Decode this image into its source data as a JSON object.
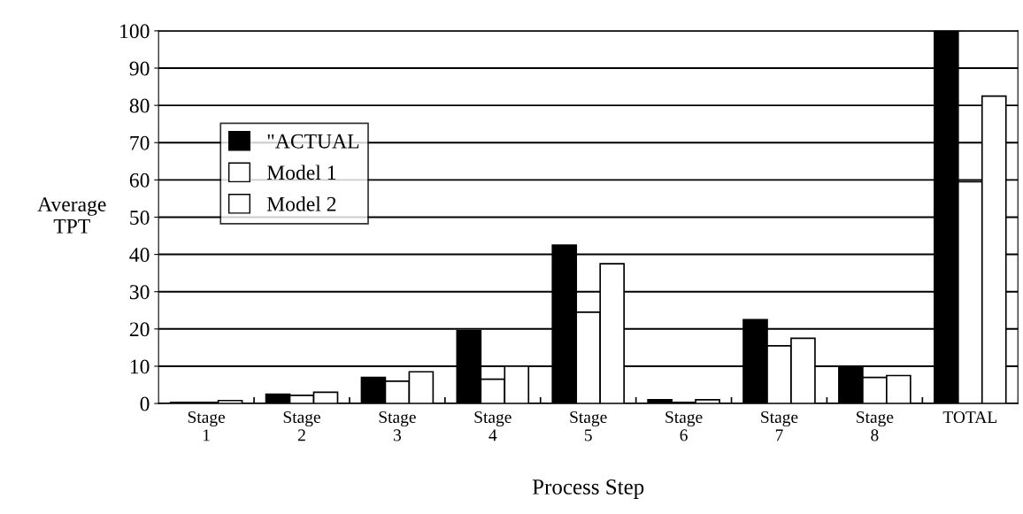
{
  "chart_data": {
    "type": "bar",
    "xlabel": "Process Step",
    "ylabel": "Average\nTPT",
    "categories": [
      "Stage\n1",
      "Stage\n2",
      "Stage\n3",
      "Stage\n4",
      "Stage\n5",
      "Stage\n6",
      "Stage\n7",
      "Stage\n8",
      "TOTAL"
    ],
    "series": [
      {
        "name": "\"ACTUAL",
        "color": "#000000",
        "values": [
          0.3,
          2.5,
          7,
          19.5,
          42.5,
          1,
          22.5,
          10,
          100
        ]
      },
      {
        "name": "Model 1",
        "color": "#ffffff",
        "values": [
          0.3,
          2.2,
          6,
          6.5,
          24.5,
          0.3,
          15.5,
          7,
          59.5
        ]
      },
      {
        "name": "Model 2",
        "color": "#ffffff",
        "values": [
          0.8,
          3,
          8.5,
          10,
          37.5,
          1,
          17.5,
          7.5,
          82.5
        ]
      }
    ],
    "ylim": [
      0,
      100
    ],
    "yticks": [
      0,
      10,
      20,
      30,
      40,
      50,
      60,
      70,
      80,
      90,
      100
    ],
    "grid": "y",
    "legend": "top left"
  }
}
